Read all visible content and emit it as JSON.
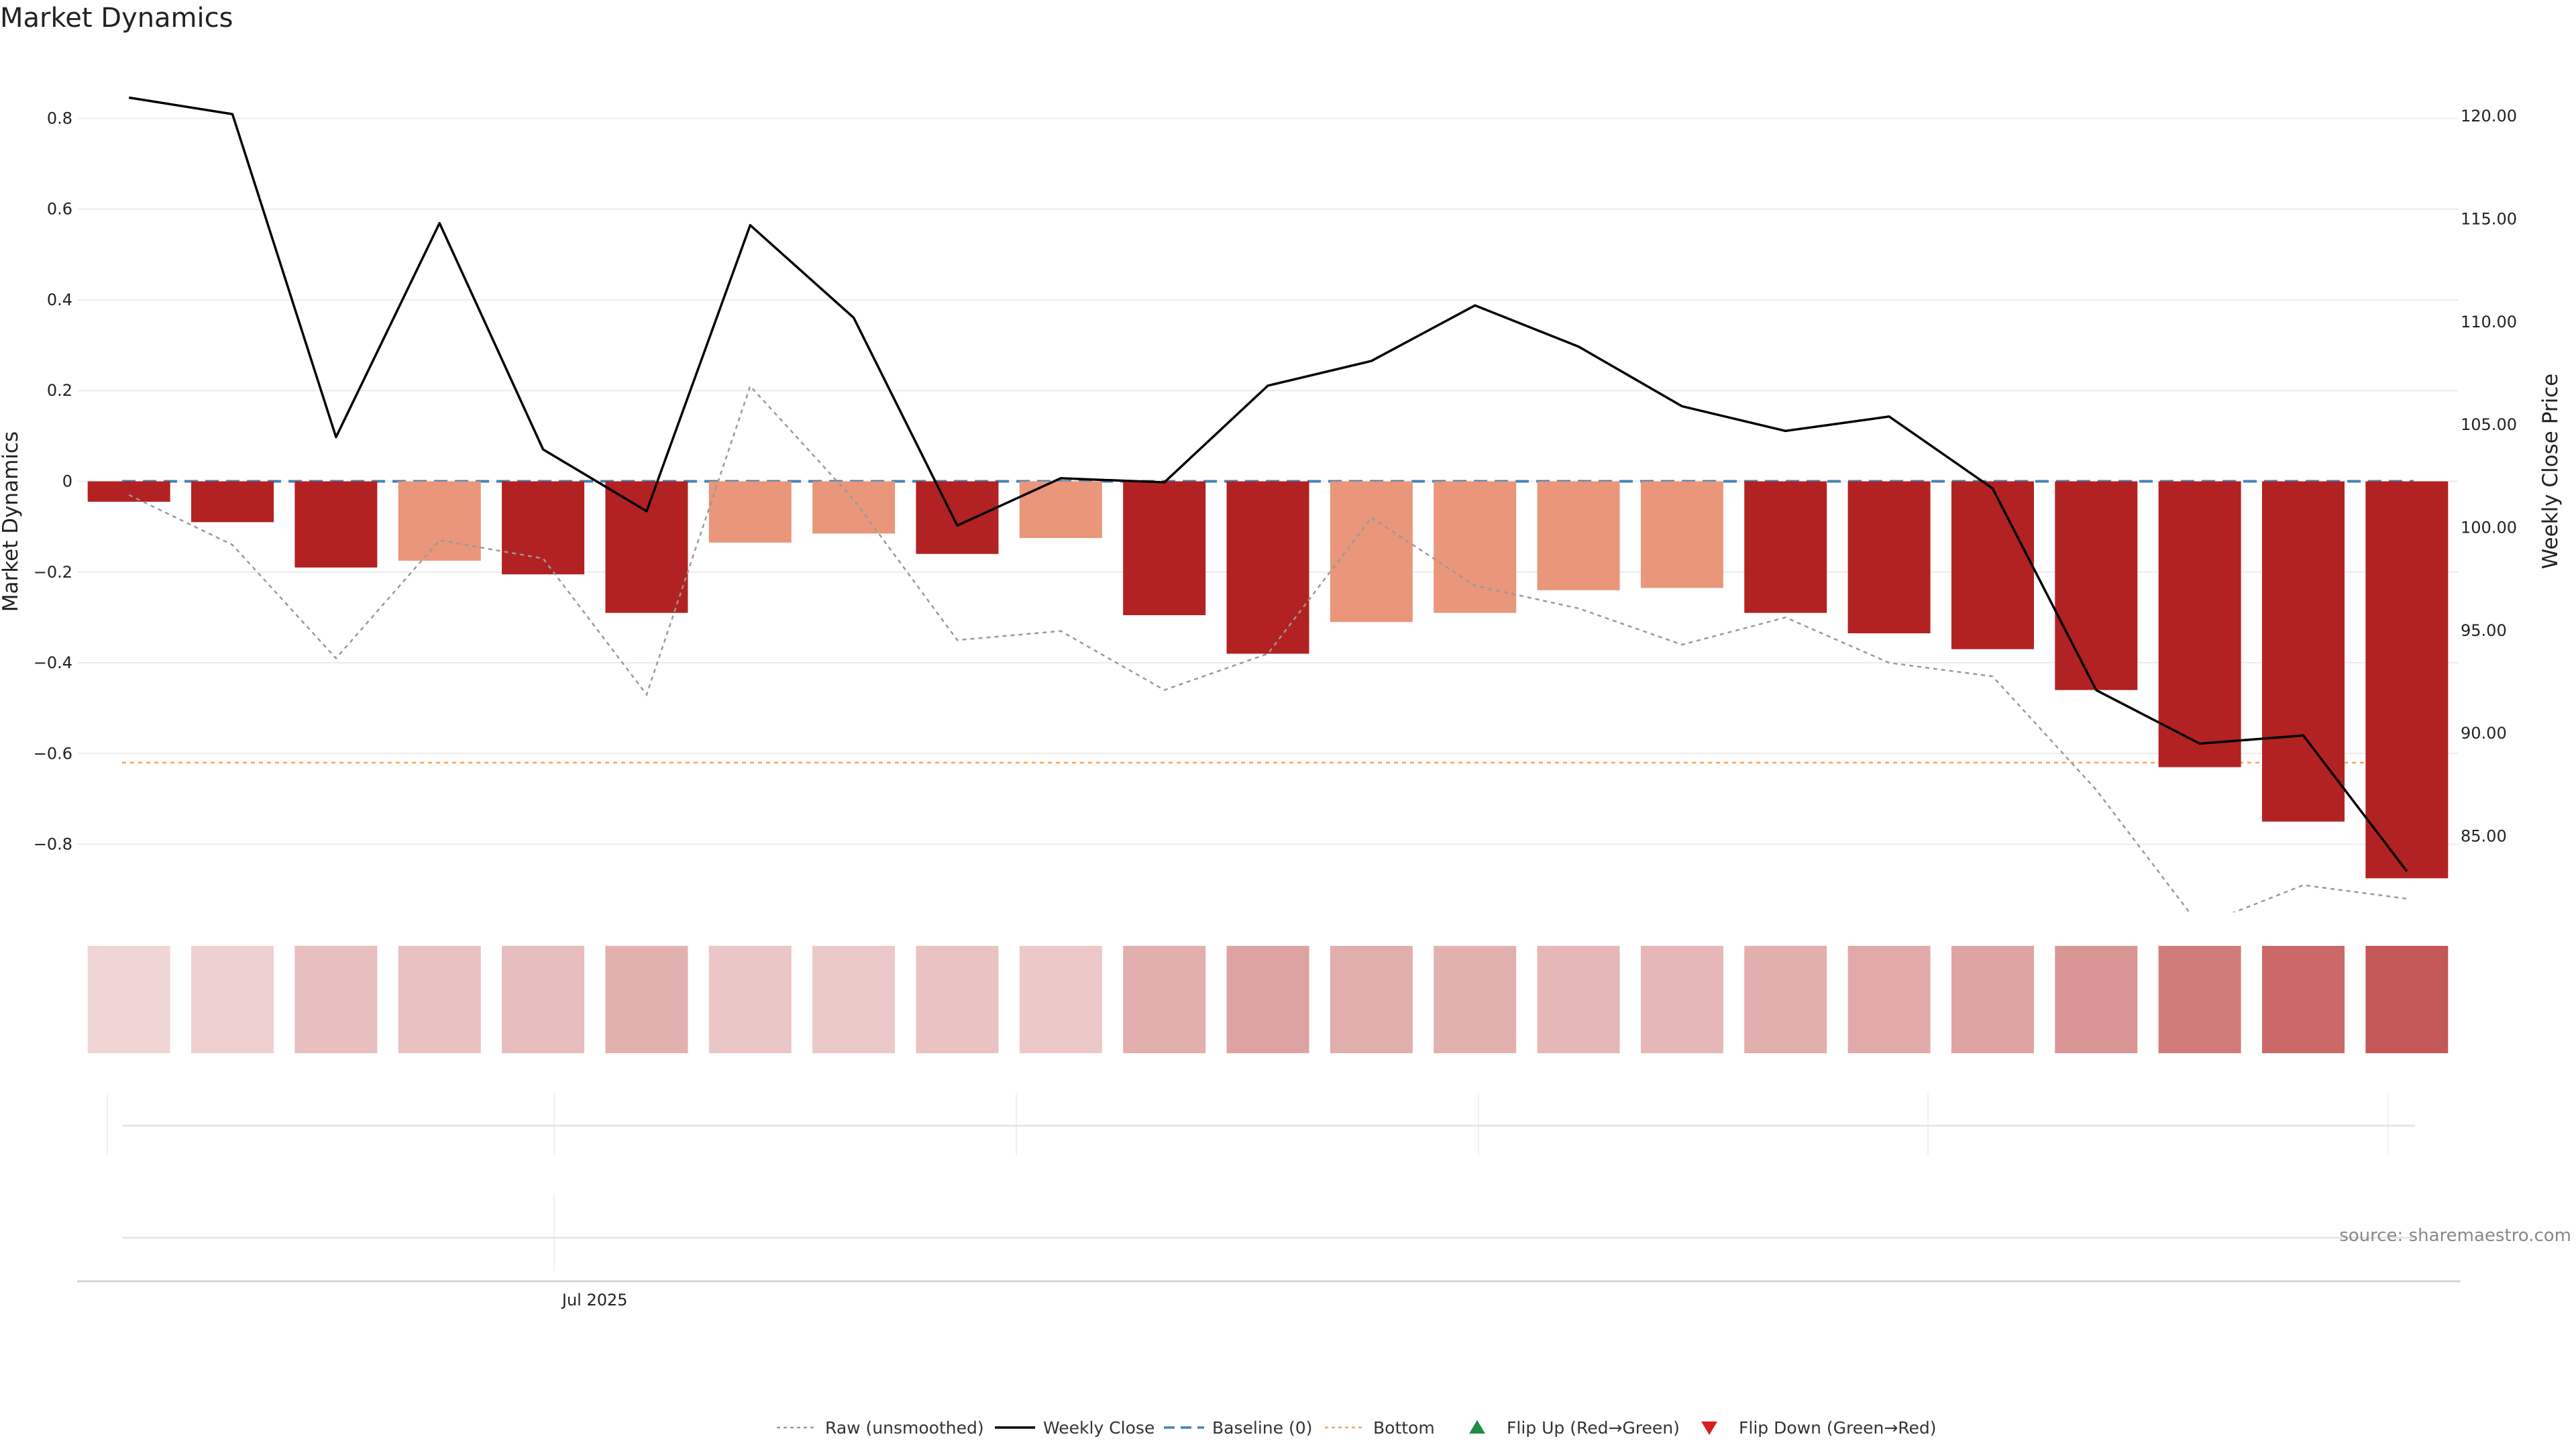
{
  "chart_data": {
    "type": "bar",
    "title": "Market Dynamics",
    "ylabel": "Market Dynamics",
    "y2label": "Weekly Close Price",
    "ylim": [
      -0.95,
      0.95
    ],
    "y2lim": [
      81.3,
      123.2
    ],
    "yticks": [
      {
        "value": 0.8,
        "label": "0.8"
      },
      {
        "value": 0.6,
        "label": "0.6"
      },
      {
        "value": 0.4,
        "label": "0.4"
      },
      {
        "value": 0.2,
        "label": "0.2"
      },
      {
        "value": 0,
        "label": "0"
      },
      {
        "value": -0.2,
        "label": "−0.2"
      },
      {
        "value": -0.4,
        "label": "−0.4"
      },
      {
        "value": -0.6,
        "label": "−0.6"
      },
      {
        "value": -0.8,
        "label": "−0.8"
      }
    ],
    "y2ticks": [
      {
        "value": 120,
        "label": "120.00"
      },
      {
        "value": 115,
        "label": "115.00"
      },
      {
        "value": 110,
        "label": "110.00"
      },
      {
        "value": 105,
        "label": "105.00"
      },
      {
        "value": 100,
        "label": "100.00"
      },
      {
        "value": 95,
        "label": "95.00"
      },
      {
        "value": 90,
        "label": "90.00"
      },
      {
        "value": 85,
        "label": "85.00"
      }
    ],
    "x_tick_label": "Jul 2025",
    "x_tick_index": 4.5,
    "bars": [
      -0.045,
      -0.09,
      -0.19,
      -0.175,
      -0.205,
      -0.29,
      -0.135,
      -0.115,
      -0.16,
      -0.125,
      -0.295,
      -0.38,
      -0.31,
      -0.29,
      -0.24,
      -0.235,
      -0.29,
      -0.335,
      -0.37,
      -0.46,
      -0.63,
      -0.75,
      -0.875
    ],
    "bar_colors": [
      "#B22222",
      "#B22222",
      "#B22222",
      "#E9967A",
      "#B22222",
      "#B22222",
      "#E9967A",
      "#E9967A",
      "#B22222",
      "#E9967A",
      "#B22222",
      "#B22222",
      "#E9967A",
      "#E9967A",
      "#E9967A",
      "#E9967A",
      "#B22222",
      "#B22222",
      "#B22222",
      "#B22222",
      "#B22222",
      "#B22222",
      "#B22222"
    ],
    "raw": [
      -0.03,
      -0.14,
      -0.39,
      -0.13,
      -0.17,
      -0.47,
      0.21,
      -0.04,
      -0.35,
      -0.33,
      -0.46,
      -0.38,
      -0.08,
      -0.23,
      -0.28,
      -0.36,
      -0.3,
      -0.4,
      -0.43,
      -0.68,
      -0.98,
      -0.89,
      -0.92
    ],
    "weekly_close": [
      120.9,
      120.1,
      104.4,
      114.8,
      103.8,
      100.8,
      114.7,
      110.2,
      100.1,
      102.4,
      102.2,
      106.9,
      108.1,
      110.8,
      108.8,
      105.9,
      104.7,
      105.4,
      101.9,
      92.1,
      89.5,
      89.9,
      83.3
    ],
    "baseline": 0,
    "bottom": -0.62,
    "strip_intensity": [
      0.05,
      0.09,
      0.21,
      0.19,
      0.22,
      0.31,
      0.15,
      0.13,
      0.18,
      0.14,
      0.32,
      0.41,
      0.33,
      0.31,
      0.26,
      0.26,
      0.32,
      0.36,
      0.4,
      0.5,
      0.68,
      0.81,
      0.94
    ],
    "legend": [
      {
        "label": "Raw (unsmoothed)",
        "style": "dotted",
        "color": "#999999"
      },
      {
        "label": "Weekly Close",
        "style": "solid",
        "color": "#000000"
      },
      {
        "label": "Baseline (0)",
        "style": "dashed",
        "color": "#4682B4"
      },
      {
        "label": "Bottom",
        "style": "dotted",
        "color": "#F4A460"
      },
      {
        "label": "Flip Up (Red→Green)",
        "style": "marker-up",
        "color": "#1E8C45"
      },
      {
        "label": "Flip Down (Green→Red)",
        "style": "marker-down",
        "color": "#D42020"
      }
    ],
    "source": "source: sharemaestro.com"
  }
}
